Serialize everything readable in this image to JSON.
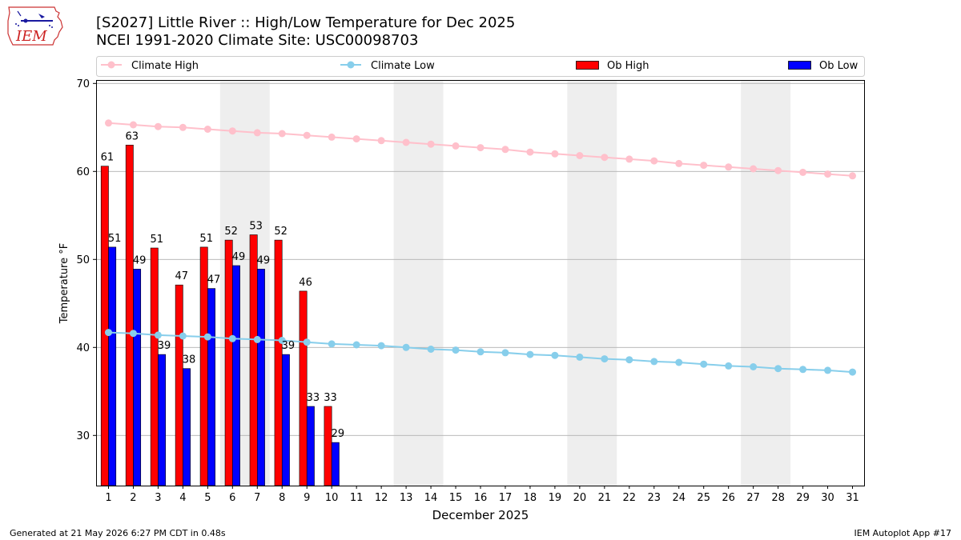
{
  "header": {
    "title": "[S2027] Little River :: High/Low Temperature for Dec 2025",
    "subtitle": "NCEI 1991-2020 Climate Site: USC00098703",
    "logo_text": "IEM"
  },
  "footer": {
    "left": "Generated at 21 May 2026 6:27 PM CDT in 0.48s",
    "right": "IEM Autoplot App #17"
  },
  "colors": {
    "ob_high": "#ff0000",
    "ob_low": "#0000ff",
    "climate_high": "#ffc0cb",
    "climate_low": "#87ceeb",
    "weekend_band": "#eeeeee",
    "grid": "#b0b0b0"
  },
  "chart_data": {
    "type": "bar",
    "xlabel": "December 2025",
    "ylabel": "Temperature °F",
    "ylim": [
      24.3,
      70.3
    ],
    "yticks": [
      30,
      40,
      50,
      60,
      70
    ],
    "grid": "horizontal",
    "legend_placement": "top",
    "days": [
      1,
      2,
      3,
      4,
      5,
      6,
      7,
      8,
      9,
      10,
      11,
      12,
      13,
      14,
      15,
      16,
      17,
      18,
      19,
      20,
      21,
      22,
      23,
      24,
      25,
      26,
      27,
      28,
      29,
      30,
      31
    ],
    "shaded_days": [
      [
        6,
        7
      ],
      [
        13,
        14
      ],
      [
        20,
        21
      ],
      [
        27,
        28
      ]
    ],
    "series": [
      {
        "name": "Climate High",
        "kind": "line",
        "values": [
          65.5,
          65.3,
          65.1,
          65.0,
          64.8,
          64.6,
          64.4,
          64.3,
          64.1,
          63.9,
          63.7,
          63.5,
          63.3,
          63.1,
          62.9,
          62.7,
          62.5,
          62.2,
          62.0,
          61.8,
          61.6,
          61.4,
          61.2,
          60.9,
          60.7,
          60.5,
          60.3,
          60.1,
          59.9,
          59.7,
          59.5
        ]
      },
      {
        "name": "Climate Low",
        "kind": "line",
        "values": [
          41.7,
          41.6,
          41.4,
          41.3,
          41.2,
          41.0,
          40.9,
          40.8,
          40.6,
          40.4,
          40.3,
          40.2,
          40.0,
          39.8,
          39.7,
          39.5,
          39.4,
          39.2,
          39.1,
          38.9,
          38.7,
          38.6,
          38.4,
          38.3,
          38.1,
          37.9,
          37.8,
          37.6,
          37.5,
          37.4,
          37.2
        ]
      },
      {
        "name": "Ob High",
        "kind": "bar",
        "values": [
          60.6,
          63.0,
          51.3,
          47.1,
          51.4,
          52.2,
          52.8,
          52.2,
          46.4,
          33.3
        ],
        "labels": [
          "61",
          "63",
          "51",
          "47",
          "51",
          "52",
          "53",
          "52",
          "46",
          "33"
        ]
      },
      {
        "name": "Ob Low",
        "kind": "bar",
        "values": [
          51.4,
          48.9,
          39.2,
          37.6,
          46.7,
          49.3,
          48.9,
          39.2,
          33.3,
          29.2
        ],
        "labels": [
          "51",
          "49",
          "39",
          "38",
          "47",
          "49",
          "49",
          "39",
          "33",
          "29"
        ]
      }
    ]
  }
}
